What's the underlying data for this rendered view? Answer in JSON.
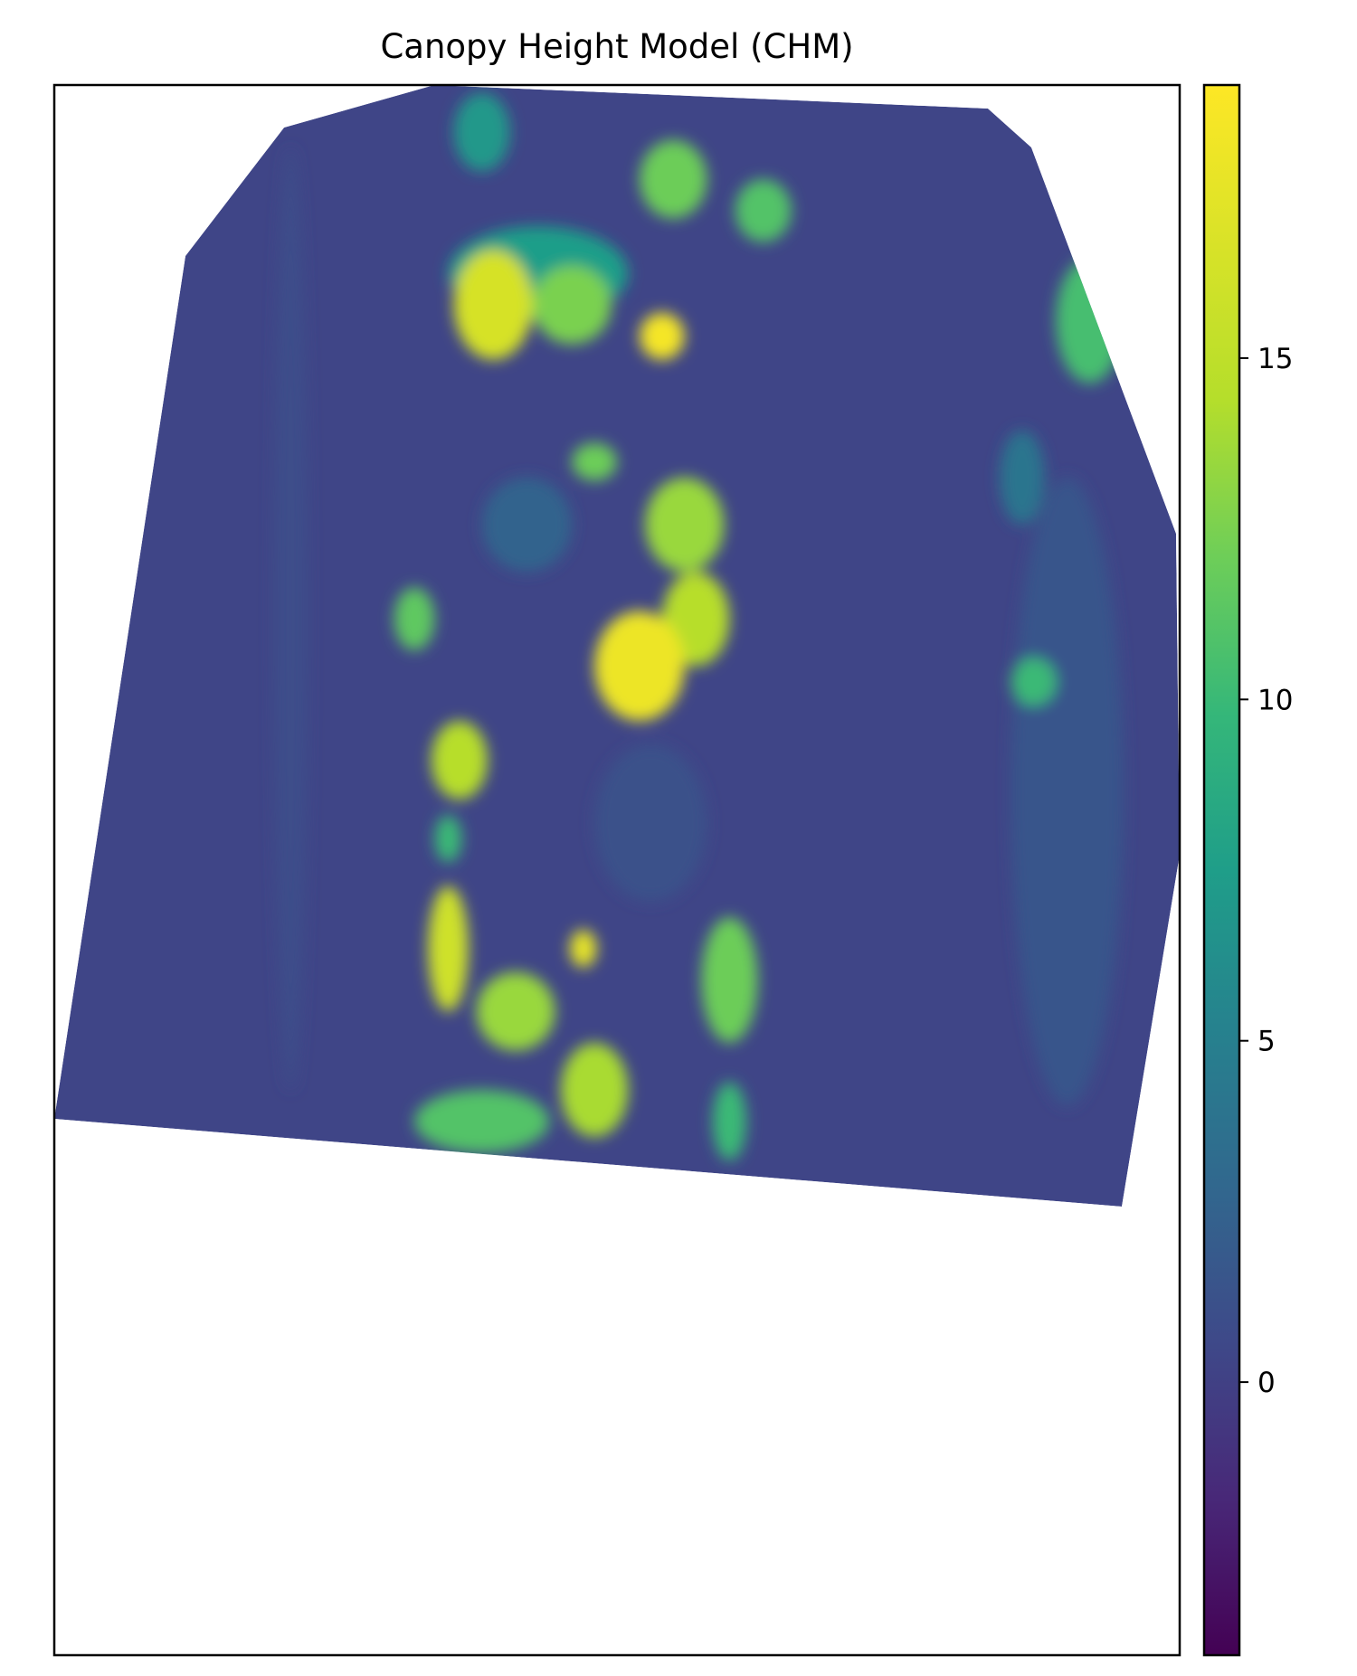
{
  "chart_data": {
    "type": "heatmap",
    "title": "Canopy Height Model (CHM)",
    "xlabel": "",
    "ylabel": "",
    "axes_ticks_shown": false,
    "colormap": "viridis",
    "colorbar": {
      "range": [
        -4.0,
        19.0
      ],
      "ticks": [
        0,
        5,
        10,
        15
      ],
      "tick_labels": [
        "0",
        "5",
        "10",
        "15"
      ],
      "placement": "right"
    },
    "background_value": 0.3,
    "no_data_color": "#ffffff",
    "features": [
      {
        "cx": 0.39,
        "cy": 0.14,
        "rx": 0.035,
        "ry": 0.035,
        "value": 16.5
      },
      {
        "cx": 0.46,
        "cy": 0.14,
        "rx": 0.035,
        "ry": 0.025,
        "value": 12.5
      },
      {
        "cx": 0.43,
        "cy": 0.12,
        "rx": 0.08,
        "ry": 0.03,
        "value": 7.5
      },
      {
        "cx": 0.54,
        "cy": 0.16,
        "rx": 0.02,
        "ry": 0.015,
        "value": 18.5
      },
      {
        "cx": 0.55,
        "cy": 0.06,
        "rx": 0.03,
        "ry": 0.025,
        "value": 12.0
      },
      {
        "cx": 0.63,
        "cy": 0.08,
        "rx": 0.025,
        "ry": 0.02,
        "value": 11.0
      },
      {
        "cx": 0.38,
        "cy": 0.03,
        "rx": 0.025,
        "ry": 0.025,
        "value": 7.0
      },
      {
        "cx": 0.92,
        "cy": 0.15,
        "rx": 0.03,
        "ry": 0.04,
        "value": 10.5
      },
      {
        "cx": 0.48,
        "cy": 0.24,
        "rx": 0.02,
        "ry": 0.012,
        "value": 12.0
      },
      {
        "cx": 0.56,
        "cy": 0.28,
        "rx": 0.035,
        "ry": 0.03,
        "value": 13.5
      },
      {
        "cx": 0.57,
        "cy": 0.34,
        "rx": 0.03,
        "ry": 0.03,
        "value": 14.5
      },
      {
        "cx": 0.52,
        "cy": 0.37,
        "rx": 0.04,
        "ry": 0.035,
        "value": 18.0
      },
      {
        "cx": 0.32,
        "cy": 0.34,
        "rx": 0.018,
        "ry": 0.02,
        "value": 11.5
      },
      {
        "cx": 0.36,
        "cy": 0.43,
        "rx": 0.025,
        "ry": 0.025,
        "value": 14.5
      },
      {
        "cx": 0.35,
        "cy": 0.48,
        "rx": 0.012,
        "ry": 0.015,
        "value": 10.0
      },
      {
        "cx": 0.35,
        "cy": 0.55,
        "rx": 0.018,
        "ry": 0.04,
        "value": 16.0
      },
      {
        "cx": 0.41,
        "cy": 0.59,
        "rx": 0.035,
        "ry": 0.025,
        "value": 13.5
      },
      {
        "cx": 0.47,
        "cy": 0.55,
        "rx": 0.012,
        "ry": 0.012,
        "value": 17.5
      },
      {
        "cx": 0.6,
        "cy": 0.57,
        "rx": 0.025,
        "ry": 0.04,
        "value": 12.0
      },
      {
        "cx": 0.48,
        "cy": 0.64,
        "rx": 0.03,
        "ry": 0.03,
        "value": 14.0
      },
      {
        "cx": 0.38,
        "cy": 0.66,
        "rx": 0.06,
        "ry": 0.02,
        "value": 11.0
      },
      {
        "cx": 0.6,
        "cy": 0.66,
        "rx": 0.015,
        "ry": 0.025,
        "value": 10.0
      },
      {
        "cx": 0.87,
        "cy": 0.38,
        "rx": 0.02,
        "ry": 0.015,
        "value": 10.0
      },
      {
        "cx": 0.42,
        "cy": 0.28,
        "rx": 0.04,
        "ry": 0.03,
        "value": 2.5
      },
      {
        "cx": 0.86,
        "cy": 0.25,
        "rx": 0.02,
        "ry": 0.03,
        "value": 4.0
      },
      {
        "cx": 0.9,
        "cy": 0.45,
        "rx": 0.05,
        "ry": 0.2,
        "value": 1.5
      },
      {
        "cx": 0.21,
        "cy": 0.34,
        "rx": 0.015,
        "ry": 0.3,
        "value": 0.9
      },
      {
        "cx": 0.53,
        "cy": 0.47,
        "rx": 0.05,
        "ry": 0.05,
        "value": 1.2
      }
    ],
    "grid": false,
    "legend": "none"
  }
}
